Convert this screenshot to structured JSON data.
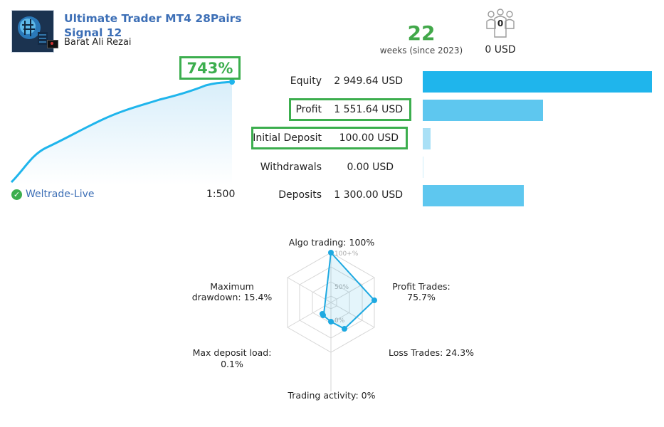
{
  "header": {
    "title": "Ultimate Trader MT4 28Pairs Signal 12",
    "author": "Barat Ali Rezai"
  },
  "stats": {
    "weeks_value": "22",
    "weeks_label": "weeks (since 2023)",
    "subscribers_count": "0",
    "subscribers_value": "0 USD"
  },
  "growth": {
    "value": "743%",
    "broker": "Weltrade-Live",
    "leverage": "1:500"
  },
  "balance_rows": [
    {
      "label": "Equity",
      "value": "2 949.64 USD",
      "amount": 2949.64
    },
    {
      "label": "Profit",
      "value": "1 551.64 USD",
      "amount": 1551.64
    },
    {
      "label": "Initial Deposit",
      "value": "100.00 USD",
      "amount": 100.0
    },
    {
      "label": "Withdrawals",
      "value": "0.00 USD",
      "amount": 0.0
    },
    {
      "label": "Deposits",
      "value": "1 300.00 USD",
      "amount": 1300.0
    }
  ],
  "colors": {
    "brand_blue": "#3d6fb6",
    "accent_green": "#3cae4e",
    "bar_light": "#5ec7ef",
    "bar_dark": "#1fb5ec",
    "radar_line": "#1ea9e1"
  },
  "radar": {
    "scale_labels": [
      "100+%",
      "50%",
      "0%"
    ],
    "axes": [
      {
        "label": "Algo trading: 100%",
        "value": 100
      },
      {
        "label": "Profit Trades: 75.7%",
        "value": 75.7
      },
      {
        "label": "Loss Trades: 24.3%",
        "value": 24.3
      },
      {
        "label": "Trading activity: 0%",
        "value": 0
      },
      {
        "label": "Max deposit load: 0.1%",
        "value": 0.1
      },
      {
        "label": "Maximum drawdown: 15.4%",
        "value": 15.4
      }
    ],
    "label_lines": {
      "algo": "Algo trading: 100%",
      "profit_1": "Profit Trades:",
      "profit_2": "75.7%",
      "loss": "Loss Trades: 24.3%",
      "activity": "Trading activity: 0%",
      "deposit_1": "Max deposit load:",
      "deposit_2": "0.1%",
      "drawdown_1": "Maximum",
      "drawdown_2": "drawdown: 15.4%"
    }
  }
}
